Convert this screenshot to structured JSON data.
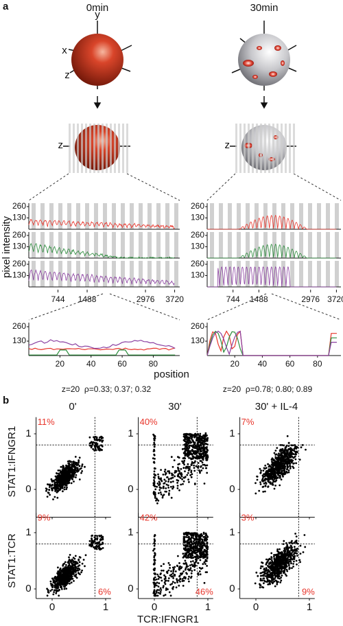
{
  "panel_a": {
    "label": "a",
    "columns": [
      {
        "title": "0min",
        "summary": "z=20  ρ=0.33; 0.37; 0.32"
      },
      {
        "title": "30min",
        "summary": "z=20  ρ=0.78; 0.80; 0.89"
      }
    ],
    "axis_labels": {
      "x": "x",
      "y": "y",
      "z": "z"
    },
    "profile": {
      "y_label": "pixel intensity",
      "yticks": [
        130,
        260
      ],
      "xticks": [
        744,
        1488,
        2976,
        3720
      ]
    },
    "zoom": {
      "x_label": "position",
      "yticks": [
        130,
        260
      ],
      "xticks": [
        20,
        40,
        60,
        80
      ]
    }
  },
  "panel_b": {
    "label": "b",
    "columns": [
      "0'",
      "30'",
      "30' + IL-4"
    ],
    "rows": [
      "STAT1:IFNGR1",
      "STAT1:TCR"
    ],
    "x_label": "TCR:IFNGR1",
    "xticks": [
      0,
      1
    ],
    "yticks": [
      0,
      1
    ],
    "threshold": 0.8,
    "upper_left": [
      [
        "11%",
        "40%",
        "7%"
      ],
      [
        "9%",
        "42%",
        "3%"
      ]
    ],
    "bottom_row_lower_right": [
      "6%",
      "46%",
      "9%"
    ]
  }
}
